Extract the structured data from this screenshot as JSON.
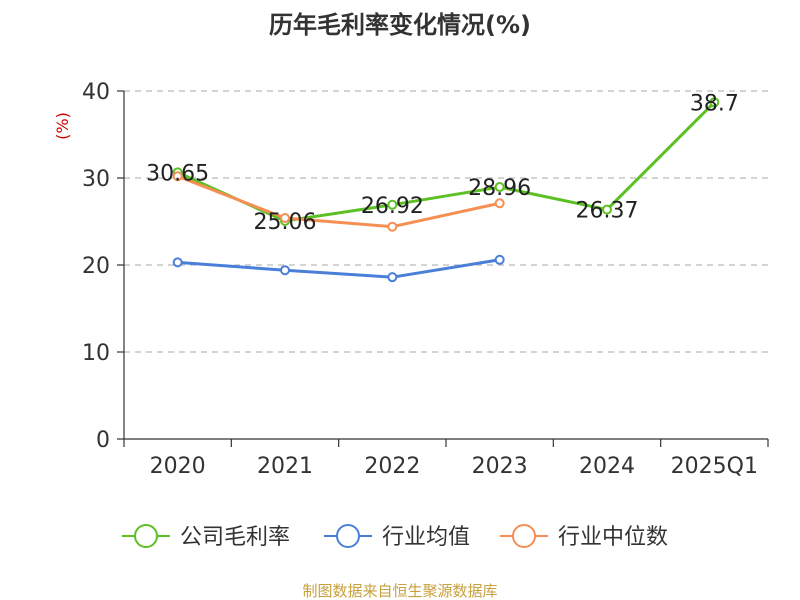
{
  "source": "制图数据来自恒生聚源数据库",
  "colors": {
    "source": "#c8a03c",
    "ylabel": "#cc0000",
    "axis": "#333333",
    "grid": "#bbbbbb"
  },
  "chart_data": {
    "type": "line",
    "title": "历年毛利率变化情况(%)",
    "ylabel": "(%)",
    "xlabel": "",
    "categories": [
      "2020",
      "2021",
      "2022",
      "2023",
      "2024",
      "2025Q1"
    ],
    "ylim": [
      0,
      40
    ],
    "yticks": [
      0,
      10,
      20,
      30,
      40
    ],
    "grid": "horizontal dashed",
    "legend_position": "bottom",
    "series": [
      {
        "name": "公司毛利率",
        "color": "#5cc024",
        "values": [
          30.65,
          25.06,
          26.92,
          28.96,
          26.37,
          38.7
        ],
        "labels": [
          "30.65",
          "25.06",
          "26.92",
          "28.96",
          "26.37",
          "38.7"
        ]
      },
      {
        "name": "行业均值",
        "color": "#4a7fd9",
        "values": [
          20.3,
          19.4,
          18.6,
          20.6,
          null,
          null
        ]
      },
      {
        "name": "行业中位数",
        "color": "#f58f54",
        "values": [
          30.2,
          25.4,
          24.4,
          27.1,
          null,
          null
        ]
      }
    ]
  }
}
